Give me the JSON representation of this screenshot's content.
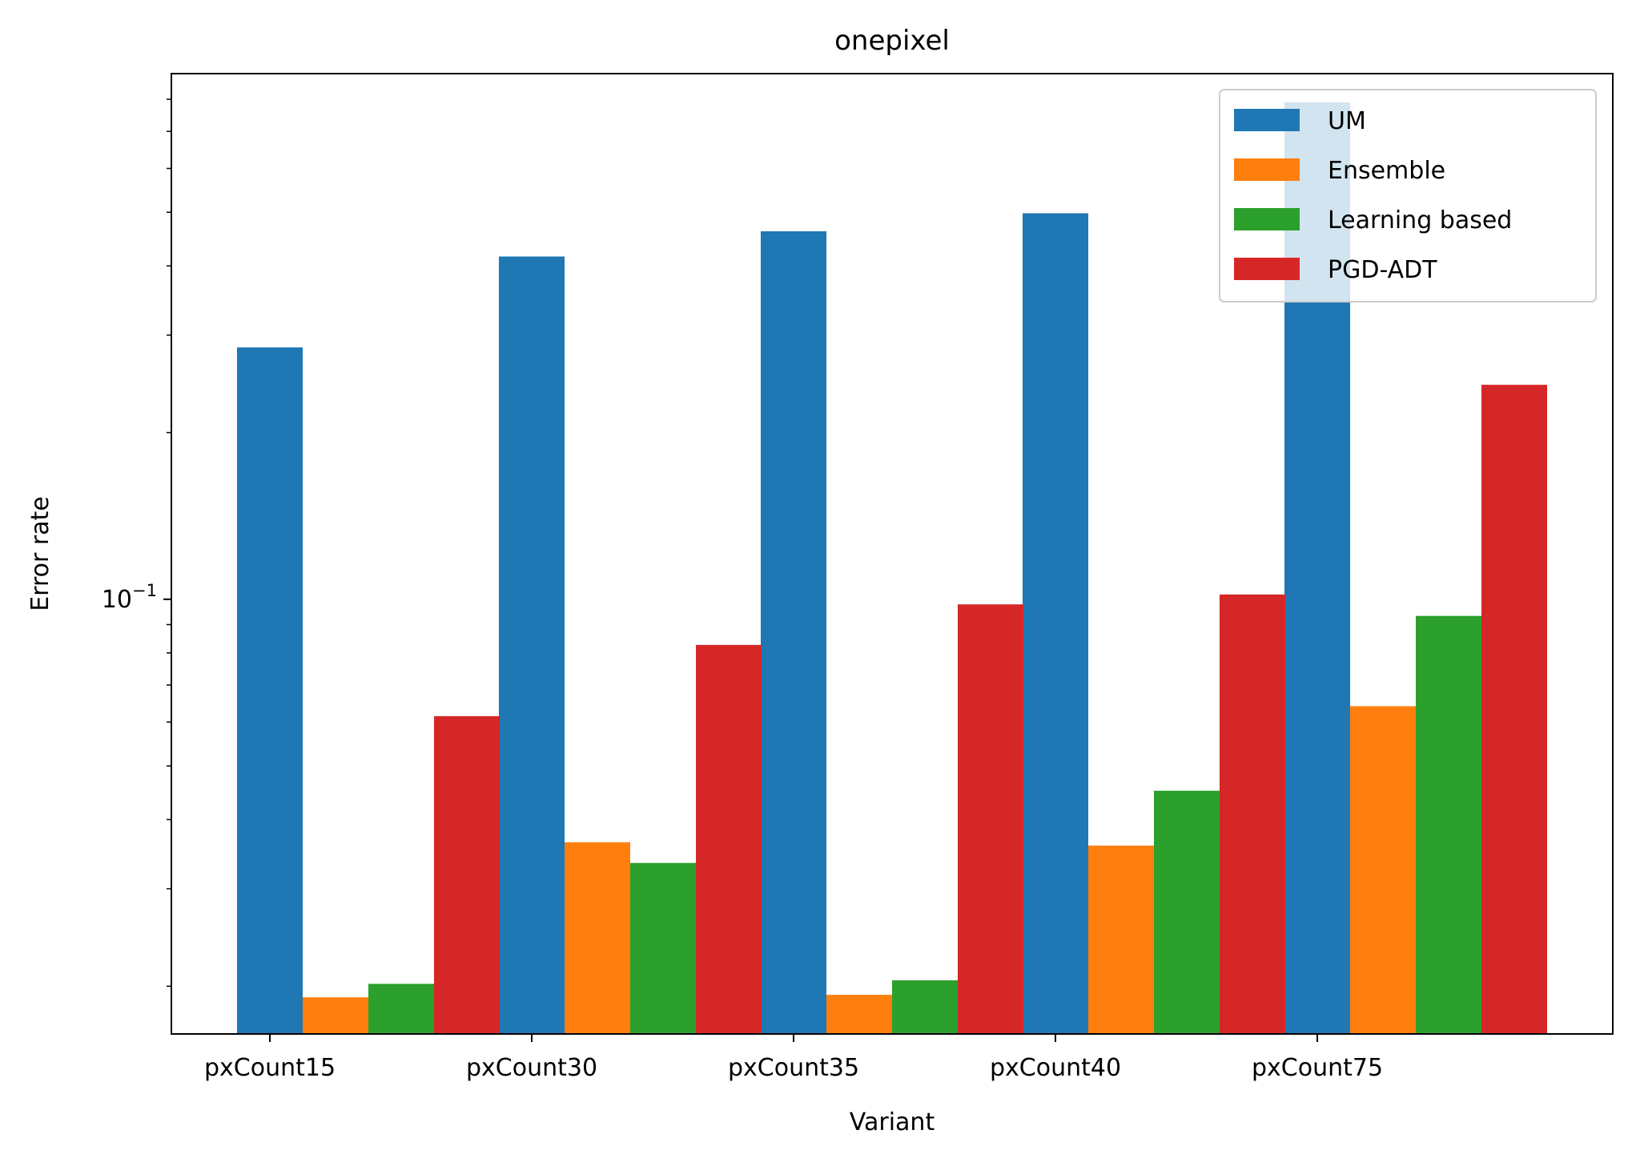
{
  "chart_data": {
    "type": "bar",
    "title": "onepixel",
    "xlabel": "Variant",
    "ylabel": "Error rate",
    "yscale": "log",
    "ylim": [
      0.0164,
      0.89
    ],
    "y_tick_labels": [
      {
        "value": 0.1,
        "base": "10",
        "exponent": "−1"
      }
    ],
    "categories": [
      "pxCount15",
      "pxCount30",
      "pxCount35",
      "pxCount40",
      "pxCount75"
    ],
    "grid": false,
    "legend_position": "top-right",
    "series": [
      {
        "name": "UM",
        "color": "#1f77b4",
        "values": [
          0.285,
          0.416,
          0.462,
          0.498,
          0.79
        ]
      },
      {
        "name": "Ensemble",
        "color": "#ff7f0e",
        "values": [
          0.0191,
          0.0364,
          0.0193,
          0.0359,
          0.0641
        ]
      },
      {
        "name": "Learning based",
        "color": "#2ca02c",
        "values": [
          0.0202,
          0.0334,
          0.0205,
          0.0451,
          0.0933
        ]
      },
      {
        "name": "PGD-ADT",
        "color": "#d62728",
        "values": [
          0.0615,
          0.0827,
          0.0979,
          0.102,
          0.244
        ]
      }
    ]
  }
}
